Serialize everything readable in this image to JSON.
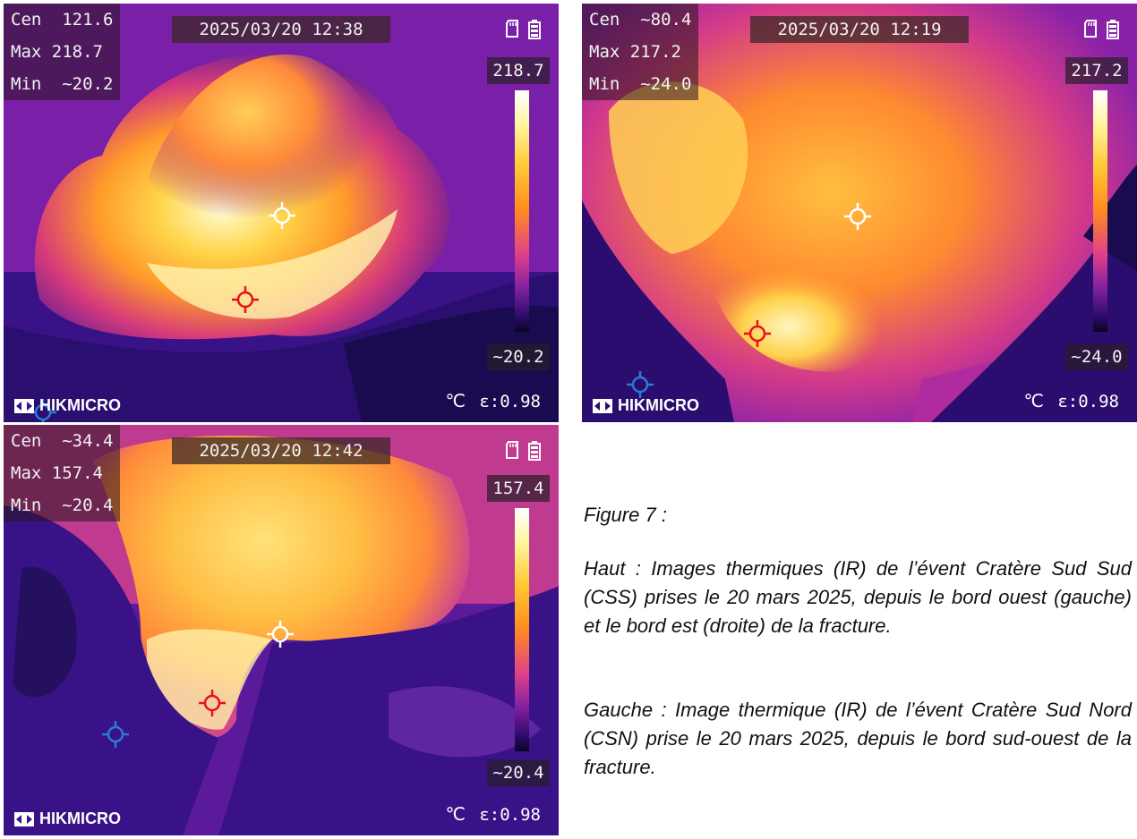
{
  "images": [
    {
      "cen": "Cen  121.6",
      "max": "Max 218.7",
      "min": "Min  ~20.2",
      "datetime": "2025/03/20 12:38",
      "scale_max": "218.7",
      "scale_min": "~20.2",
      "brand": "HIKMICRO",
      "unit": "℃",
      "emissivity": "ε:0.98"
    },
    {
      "cen": "Cen  ~80.4",
      "max": "Max 217.2",
      "min": "Min  ~24.0",
      "datetime": "2025/03/20 12:19",
      "scale_max": "217.2",
      "scale_min": "~24.0",
      "brand": "HIKMICRO",
      "unit": "℃",
      "emissivity": "ε:0.98"
    },
    {
      "cen": "Cen  ~34.4",
      "max": "Max 157.4",
      "min": "Min  ~20.4",
      "datetime": "2025/03/20 12:42",
      "scale_max": "157.4",
      "scale_min": "~20.4",
      "brand": "HIKMICRO",
      "unit": "℃",
      "emissivity": "ε:0.98"
    }
  ],
  "caption": {
    "title": "Figure 7 :",
    "top": "Haut : Images thermiques (IR) de l’évent Cratère Sud Sud (CSS) prises le 20 mars 2025, depuis le bord ouest (gauche) et le bord est (droite) de la fracture.",
    "left": "Gauche : Image thermique (IR) de l’évent Cratère Sud Nord (CSN) prise le 20 mars 2025, depuis le bord sud-ouest de la fracture."
  },
  "colors": {
    "crosshair_center": "#ffffff",
    "crosshair_max": "#e8101a",
    "crosshair_min": "#2a7ad8"
  },
  "icons": [
    "sd-card-icon",
    "battery-icon",
    "hikmicro-logo-icon",
    "crosshair-icon"
  ]
}
